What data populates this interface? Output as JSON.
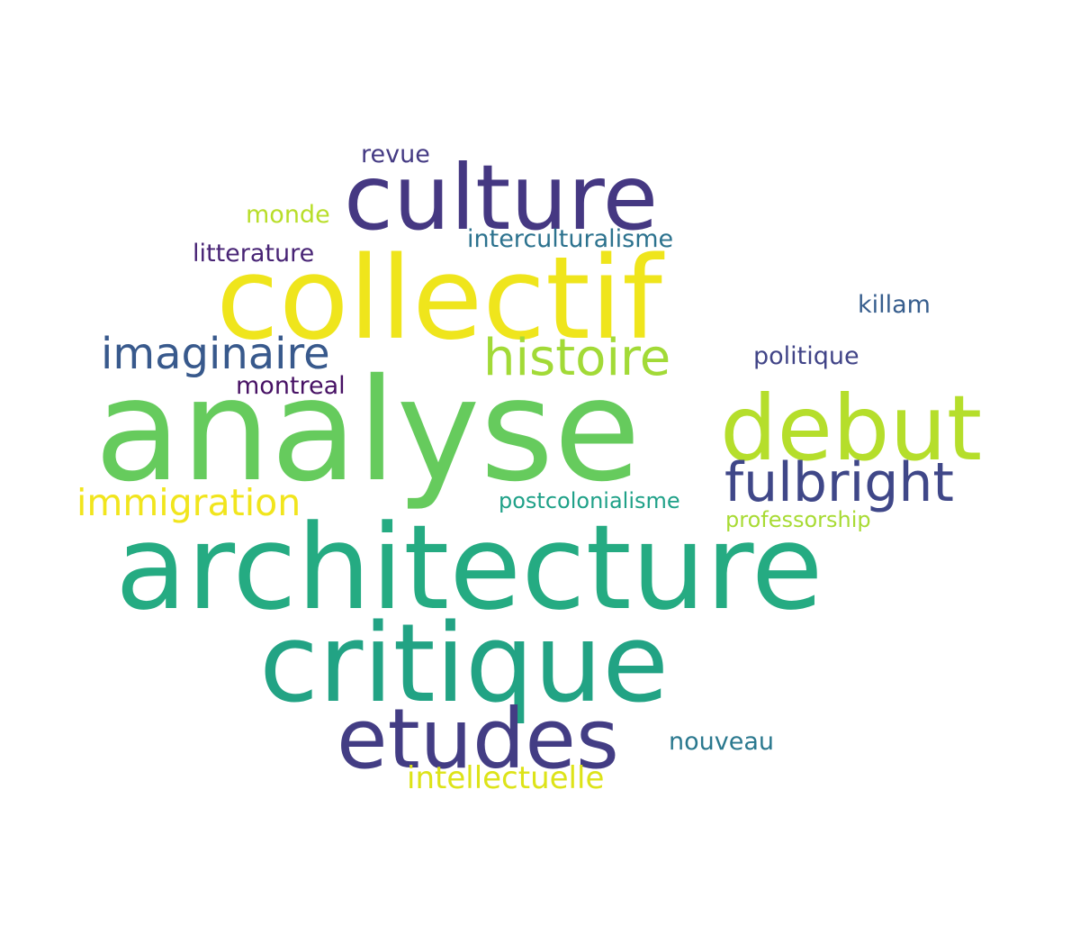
{
  "words": [
    {
      "text": "analyse",
      "color": "#66cb5d"
    },
    {
      "text": "architecture",
      "color": "#25ab82"
    },
    {
      "text": "collectif",
      "color": "#efe51c"
    },
    {
      "text": "critique",
      "color": "#22a384"
    },
    {
      "text": "culture",
      "color": "#453882"
    },
    {
      "text": "etudes",
      "color": "#433d84"
    },
    {
      "text": "debut",
      "color": "#b5de2b"
    },
    {
      "text": "fulbright",
      "color": "#3f4788"
    },
    {
      "text": "histoire",
      "color": "#a2da37"
    },
    {
      "text": "imaginaire",
      "color": "#38598c"
    },
    {
      "text": "immigration",
      "color": "#f1e51d"
    },
    {
      "text": "intellectuelle",
      "color": "#dde318"
    },
    {
      "text": "interculturalisme",
      "color": "#2c728e"
    },
    {
      "text": "litterature",
      "color": "#482475"
    },
    {
      "text": "monde",
      "color": "#b8de29"
    },
    {
      "text": "revue",
      "color": "#443a83"
    },
    {
      "text": "killam",
      "color": "#365d8d"
    },
    {
      "text": "politique",
      "color": "#414487"
    },
    {
      "text": "montreal",
      "color": "#471164"
    },
    {
      "text": "postcolonialisme",
      "color": "#1fa188"
    },
    {
      "text": "professorship",
      "color": "#a8db34"
    },
    {
      "text": "nouveau",
      "color": "#2a788e"
    }
  ]
}
